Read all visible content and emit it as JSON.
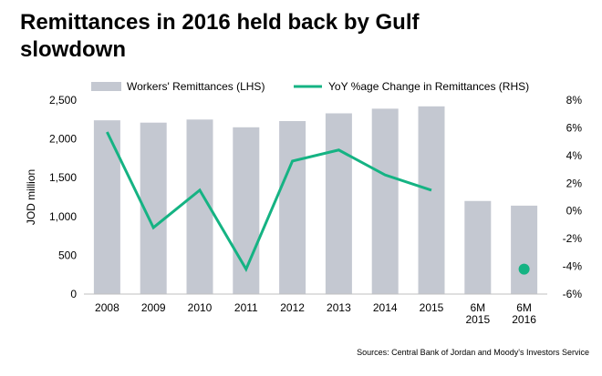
{
  "title_line1": "Remittances in 2016 held back by Gulf",
  "title_line2": "slowdown",
  "source": "Sources: Central Bank of Jordan and Moody's Investors Service",
  "chart_data": {
    "type": "bar",
    "categories": [
      "2008",
      "2009",
      "2010",
      "2011",
      "2012",
      "2013",
      "2014",
      "2015",
      "6M 2015",
      "6M 2016"
    ],
    "series": [
      {
        "name": "Workers' Remittances (LHS)",
        "type": "bar",
        "axis": "left",
        "color": "#c4c8d1",
        "values": [
          2240,
          2210,
          2250,
          2150,
          2230,
          2330,
          2390,
          2420,
          1200,
          1140
        ]
      },
      {
        "name": "YoY %age Change in Remittances (RHS)",
        "type": "line",
        "axis": "right",
        "color": "#15b383",
        "values": [
          5.7,
          -1.2,
          1.5,
          -4.2,
          3.6,
          4.4,
          2.6,
          1.5,
          null,
          -4.2
        ]
      }
    ],
    "ylabel": "JOD million",
    "ylim": [
      0,
      2500
    ],
    "yticks": [
      "0",
      "500",
      "1,000",
      "1,500",
      "2,000",
      "2,500"
    ],
    "y2lim": [
      -6,
      8
    ],
    "y2ticks": [
      "-6%",
      "-4%",
      "-2%",
      "0%",
      "2%",
      "4%",
      "6%",
      "8%"
    ],
    "legend_position": "top"
  }
}
